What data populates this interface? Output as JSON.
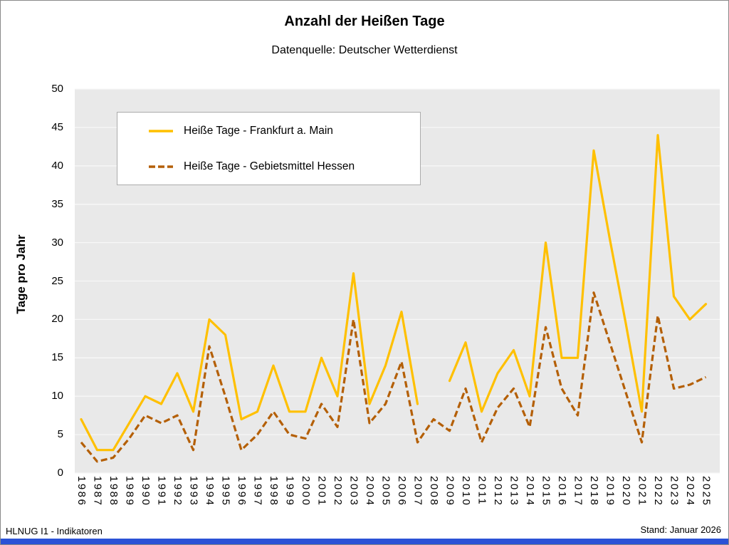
{
  "title": "Anzahl der Heißen Tage",
  "subtitle": "Datenquelle: Deutscher Wetterdienst",
  "footer": {
    "left": "HLNUG I1 - Indikatoren",
    "right": "Stand: Januar 2026"
  },
  "colors": {
    "frankfurt_line": "#FFC000",
    "hessen_line": "#B45F06",
    "plot_bg": "#E9E9E9",
    "gridline": "#F8F8F8",
    "legend_border": "#ABABAB",
    "footer_bar": "#2B52D6"
  },
  "chart_data": {
    "type": "line",
    "title": "Anzahl der Heißen Tage",
    "subtitle": "Datenquelle: Deutscher Wetterdienst",
    "xlabel": "",
    "ylabel": "Tage pro Jahr",
    "ylim": [
      0,
      50
    ],
    "ytick_step": 5,
    "grid": true,
    "legend_position": "top-left-inside",
    "categories": [
      1986,
      1987,
      1988,
      1989,
      1990,
      1991,
      1992,
      1993,
      1994,
      1995,
      1996,
      1997,
      1998,
      1999,
      2000,
      2001,
      2002,
      2003,
      2004,
      2005,
      2006,
      2007,
      2008,
      2009,
      2010,
      2011,
      2012,
      2013,
      2014,
      2015,
      2016,
      2017,
      2018,
      2019,
      2020,
      2021,
      2022,
      2023,
      2024,
      2025
    ],
    "series": [
      {
        "name": "Heiße Tage - Frankfurt a. Main",
        "style": "solid",
        "color": "#FFC000",
        "values": [
          7,
          3,
          3,
          6.5,
          10,
          9,
          13,
          8,
          20,
          18,
          7,
          8,
          14,
          8,
          8,
          15,
          10,
          26,
          9,
          14,
          21,
          9,
          null,
          12,
          17,
          8,
          13,
          16,
          10,
          30,
          15,
          15,
          42,
          30.5,
          19.5,
          8,
          44,
          23,
          20,
          22
        ]
      },
      {
        "name": "Heiße Tage - Gebietsmittel Hessen",
        "style": "dashed",
        "color": "#B45F06",
        "values": [
          4,
          1.5,
          2,
          4.5,
          7.5,
          6.5,
          7.5,
          3,
          16.5,
          10,
          3,
          5,
          8,
          5,
          4.5,
          9,
          6,
          20,
          6.5,
          9,
          14.5,
          4,
          7,
          5.5,
          11,
          4,
          8.5,
          11,
          6,
          19,
          11,
          7.5,
          23.5,
          17,
          10.5,
          4,
          20.5,
          11,
          11.5,
          12.5
        ]
      }
    ]
  }
}
